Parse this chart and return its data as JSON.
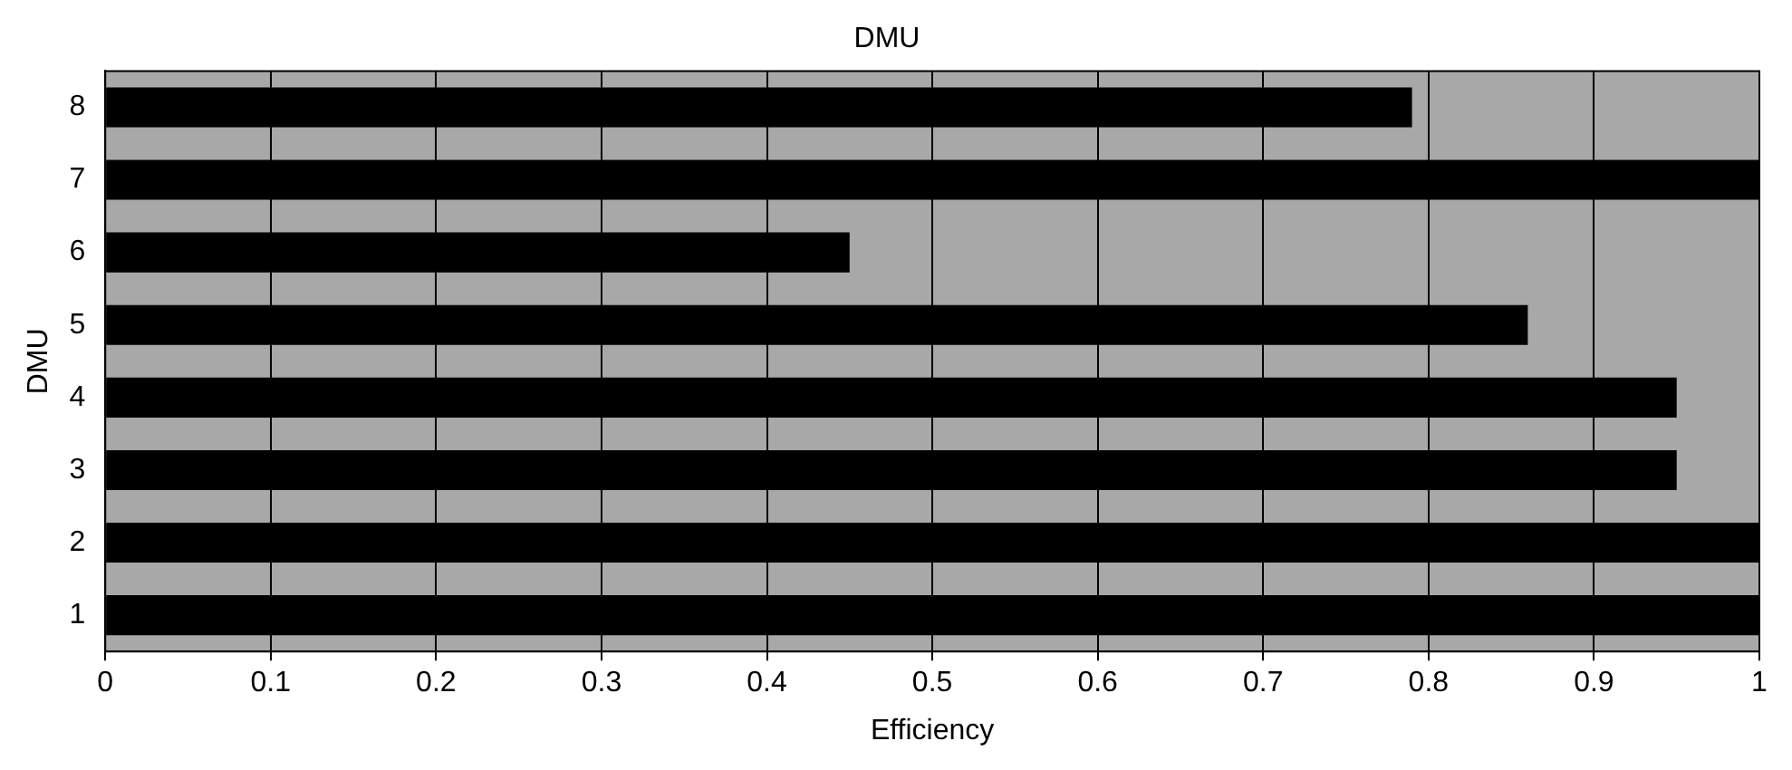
{
  "chart_data": {
    "type": "bar",
    "orientation": "horizontal",
    "title": "DMU",
    "xlabel": "Efficiency",
    "ylabel": "DMU",
    "categories": [
      "8",
      "7",
      "6",
      "5",
      "4",
      "3",
      "2",
      "1"
    ],
    "values": [
      0.79,
      1,
      0.45,
      0.86,
      0.95,
      0.95,
      1,
      1
    ],
    "color": "#000000",
    "xlim": [
      0,
      1
    ],
    "xticks": [
      0,
      0.1,
      0.2,
      0.3,
      0.4,
      0.5,
      0.6,
      0.7,
      0.8,
      0.9,
      1
    ],
    "grid": "x",
    "legend": false
  }
}
